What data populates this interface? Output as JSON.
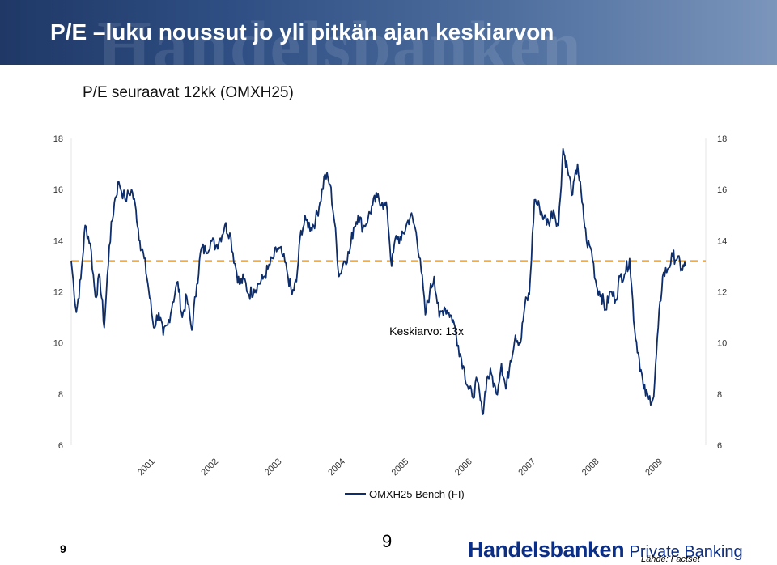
{
  "slide": {
    "title": "P/E –luku noussut jo yli pitkän ajan keskiarvon",
    "subtitle": "P/E seuraavat 12kk (OMXH25)",
    "page_number_left": "9",
    "page_number_center": "9",
    "brand_name": "Handelsbanken",
    "brand_suffix": "Private Banking",
    "source": "Lähde: Factset",
    "background_watermark": "Handelsbanken"
  },
  "colors": {
    "header": "#2f4f84",
    "series": "#0d2d6b",
    "average_line": "#e8a33c",
    "brand": "#0b2f86"
  },
  "chart_data": {
    "type": "line",
    "title": "",
    "xlabel": "",
    "ylabel": "",
    "ylim": [
      6,
      18
    ],
    "yticks": [
      6,
      8,
      10,
      12,
      14,
      16,
      18
    ],
    "right_axis": true,
    "grid": false,
    "legend": "bottom-center",
    "x_tick_labels": [
      "2001",
      "2002",
      "2003",
      "2004",
      "2005",
      "2006",
      "2007",
      "2008",
      "2009"
    ],
    "xlim": [
      2000.0,
      2010.0
    ],
    "annotations": [
      {
        "text": "Keskiarvo: 13x",
        "x": 2005.6,
        "y": 10.3
      }
    ],
    "reference_lines": [
      {
        "label": "Keskiarvo: 13x",
        "y": 13.2,
        "style": "dashed"
      }
    ],
    "series": [
      {
        "name": "OMXH25 Bench (FI)",
        "x": [
          2000.0,
          2000.08,
          2000.15,
          2000.22,
          2000.3,
          2000.38,
          2000.45,
          2000.52,
          2000.6,
          2000.68,
          2000.75,
          2000.85,
          2000.95,
          2001.02,
          2001.08,
          2001.15,
          2001.22,
          2001.3,
          2001.38,
          2001.45,
          2001.52,
          2001.6,
          2001.68,
          2001.75,
          2001.82,
          2001.9,
          2001.98,
          2002.05,
          2002.12,
          2002.2,
          2002.28,
          2002.35,
          2002.42,
          2002.5,
          2002.58,
          2002.65,
          2002.72,
          2002.8,
          2002.88,
          2002.95,
          2003.02,
          2003.1,
          2003.18,
          2003.25,
          2003.32,
          2003.4,
          2003.48,
          2003.55,
          2003.62,
          2003.7,
          2003.78,
          2003.85,
          2003.92,
          2004.0,
          2004.08,
          2004.15,
          2004.22,
          2004.3,
          2004.38,
          2004.45,
          2004.52,
          2004.6,
          2004.68,
          2004.75,
          2004.82,
          2004.9,
          2004.98,
          2005.05,
          2005.12,
          2005.2,
          2005.28,
          2005.35,
          2005.42,
          2005.5,
          2005.58,
          2005.65,
          2005.72,
          2005.8,
          2005.88,
          2005.95,
          2006.02,
          2006.1,
          2006.18,
          2006.25,
          2006.32,
          2006.4,
          2006.48,
          2006.55,
          2006.62,
          2006.7,
          2006.78,
          2006.85,
          2006.92,
          2007.0,
          2007.08,
          2007.15,
          2007.22,
          2007.3,
          2007.38,
          2007.45,
          2007.52,
          2007.6,
          2007.68,
          2007.75,
          2007.82,
          2007.9,
          2007.98,
          2008.05,
          2008.12,
          2008.2,
          2008.28,
          2008.35,
          2008.42,
          2008.5,
          2008.58,
          2008.65,
          2008.72,
          2008.8,
          2008.88,
          2008.95,
          2009.02,
          2009.1,
          2009.18,
          2009.25,
          2009.32,
          2009.4,
          2009.48,
          2009.55,
          2009.62,
          2009.68
        ],
        "values": [
          13.2,
          11.2,
          12.5,
          14.6,
          13.9,
          11.8,
          12.6,
          10.6,
          13.8,
          15.5,
          16.3,
          15.6,
          16.0,
          15.2,
          14.0,
          13.3,
          12.1,
          10.6,
          11.2,
          10.3,
          10.7,
          11.6,
          12.4,
          11.0,
          11.8,
          10.5,
          12.3,
          13.7,
          13.6,
          14.0,
          13.8,
          14.1,
          14.6,
          14.3,
          13.1,
          12.3,
          12.5,
          11.9,
          12.1,
          12.3,
          12.5,
          12.9,
          13.3,
          13.7,
          13.5,
          12.8,
          11.9,
          12.4,
          14.4,
          14.8,
          14.5,
          14.8,
          15.5,
          16.6,
          16.2,
          14.7,
          12.6,
          13.2,
          13.5,
          14.5,
          15.0,
          14.5,
          14.9,
          15.4,
          15.7,
          15.5,
          15.2,
          13.0,
          14.2,
          14.0,
          14.6,
          15.0,
          14.5,
          13.3,
          11.1,
          12.0,
          12.6,
          11.0,
          11.4,
          11.2,
          10.9,
          9.9,
          9.1,
          8.3,
          7.9,
          8.5,
          7.2,
          8.6,
          8.8,
          8.0,
          9.2,
          8.2,
          9.3,
          10.3,
          10.0,
          11.5,
          11.9,
          15.6,
          15.3,
          14.9,
          14.7,
          15.2,
          14.6,
          17.6,
          16.8,
          15.8,
          17.0,
          15.5,
          14.0,
          13.6,
          12.2,
          11.9,
          11.3,
          12.0,
          11.7,
          12.6,
          12.7,
          13.3,
          10.5,
          9.4,
          8.2,
          7.8,
          7.9,
          10.6,
          12.6,
          12.9,
          13.4,
          13.3,
          12.9,
          13.0
        ],
        "color": "#0d2d6b"
      }
    ]
  }
}
